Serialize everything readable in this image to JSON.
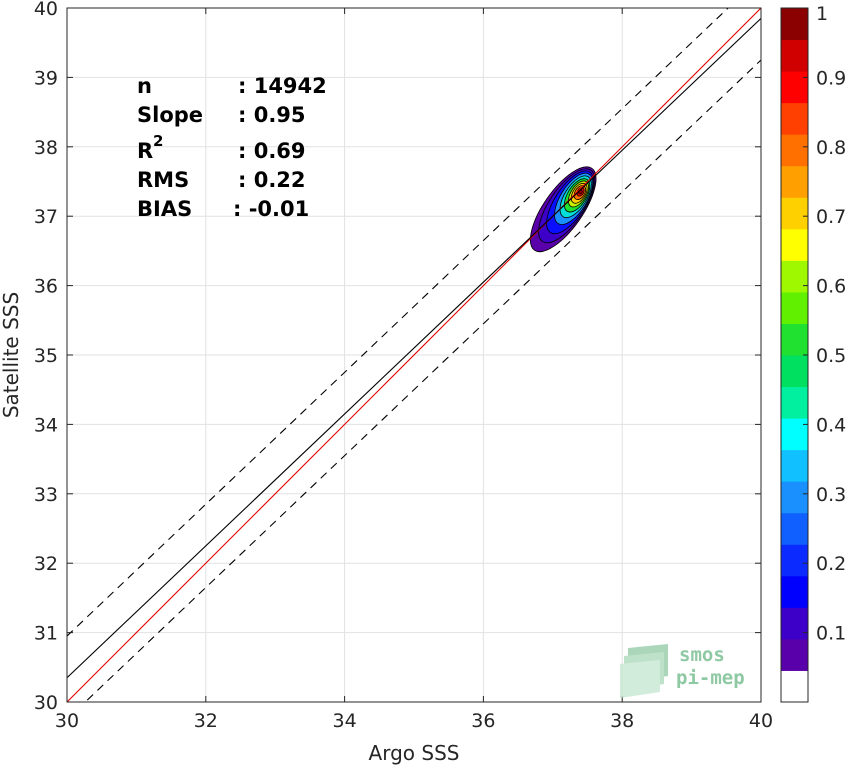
{
  "chart_data": {
    "type": "scatter",
    "xlabel": "Argo SSS",
    "ylabel": "Satellite SSS",
    "xlim": [
      30,
      40
    ],
    "ylim": [
      30,
      40
    ],
    "xticks": [
      30,
      32,
      34,
      36,
      38,
      40
    ],
    "yticks": [
      30,
      31,
      32,
      33,
      34,
      35,
      36,
      37,
      38,
      39,
      40
    ],
    "grid": true,
    "stats": [
      {
        "label": "n",
        "value": ": 14942"
      },
      {
        "label": "Slope",
        "value": ": 0.95"
      },
      {
        "label": "R",
        "sup": "2",
        "value": ": 0.69"
      },
      {
        "label": "RMS",
        "value": ": 0.22"
      },
      {
        "label": "BIAS",
        "value": ": -0.01"
      }
    ],
    "lines": [
      {
        "kind": "one-to-one",
        "color": "#e00000",
        "points": [
          [
            30,
            30
          ],
          [
            40,
            40
          ]
        ]
      },
      {
        "kind": "regression",
        "color": "#000000",
        "points": [
          [
            30,
            30.35
          ],
          [
            40,
            39.85
          ]
        ]
      },
      {
        "kind": "upper-bound-dashed",
        "color": "#000000",
        "points": [
          [
            30,
            30.95
          ],
          [
            40,
            40.45
          ]
        ]
      },
      {
        "kind": "lower-bound-dashed",
        "color": "#000000",
        "points": [
          [
            30,
            29.75
          ],
          [
            40,
            39.25
          ]
        ]
      }
    ],
    "density": {
      "center": [
        37.4,
        37.35
      ],
      "levels": [
        0.05,
        0.1,
        0.15,
        0.2,
        0.25,
        0.3,
        0.35,
        0.4,
        0.5,
        0.6,
        0.7,
        0.8,
        0.9
      ],
      "contours": [
        {
          "level": 0.05,
          "color": "#5a00aa",
          "cx": 37.15,
          "cy": 37.1,
          "rx": 0.72,
          "ry": 0.28,
          "angle": 55
        },
        {
          "level": 0.1,
          "color": "#3c00c8",
          "cx": 37.2,
          "cy": 37.15,
          "rx": 0.62,
          "ry": 0.25,
          "angle": 56
        },
        {
          "level": 0.2,
          "color": "#0a10ff",
          "cx": 37.25,
          "cy": 37.2,
          "rx": 0.52,
          "ry": 0.22,
          "angle": 57
        },
        {
          "level": 0.3,
          "color": "#1a90ff",
          "cx": 37.3,
          "cy": 37.25,
          "rx": 0.42,
          "ry": 0.19,
          "angle": 58
        },
        {
          "level": 0.4,
          "color": "#00e0d8",
          "cx": 37.33,
          "cy": 37.28,
          "rx": 0.34,
          "ry": 0.16,
          "angle": 58
        },
        {
          "level": 0.5,
          "color": "#20e030",
          "cx": 37.35,
          "cy": 37.3,
          "rx": 0.27,
          "ry": 0.135,
          "angle": 58
        },
        {
          "level": 0.6,
          "color": "#c8f000",
          "cx": 37.37,
          "cy": 37.32,
          "rx": 0.21,
          "ry": 0.11,
          "angle": 58
        },
        {
          "level": 0.7,
          "color": "#ffd000",
          "cx": 37.38,
          "cy": 37.33,
          "rx": 0.16,
          "ry": 0.09,
          "angle": 58
        },
        {
          "level": 0.8,
          "color": "#ff7000",
          "cx": 37.39,
          "cy": 37.34,
          "rx": 0.11,
          "ry": 0.07,
          "angle": 58
        },
        {
          "level": 0.9,
          "color": "#e80000",
          "cx": 37.4,
          "cy": 37.35,
          "rx": 0.065,
          "ry": 0.045,
          "angle": 58
        },
        {
          "level": 0.95,
          "color": "#a00000",
          "cx": 37.4,
          "cy": 37.35,
          "rx": 0.03,
          "ry": 0.022,
          "angle": 58
        }
      ]
    },
    "colorbar": {
      "min": 0,
      "max": 1,
      "tick_labels": [
        "0.1",
        "0.2",
        "0.3",
        "0.4",
        "0.5",
        "0.6",
        "0.7",
        "0.8",
        "0.9",
        "1"
      ],
      "tick_values": [
        0.1,
        0.2,
        0.3,
        0.4,
        0.5,
        0.6,
        0.7,
        0.8,
        0.9,
        1.0
      ],
      "colors": [
        "#ffffff",
        "#5a00aa",
        "#3c00c8",
        "#0000ff",
        "#0a2aff",
        "#1060ff",
        "#1a90ff",
        "#10c0ff",
        "#00ffff",
        "#00f0a0",
        "#00e060",
        "#20e030",
        "#60f000",
        "#a0f800",
        "#ffff00",
        "#ffd000",
        "#ffa000",
        "#ff7000",
        "#ff4000",
        "#ff0000",
        "#d00000",
        "#8b0000"
      ]
    },
    "logo": {
      "line1": "smos",
      "line2": "pi-mep"
    }
  }
}
